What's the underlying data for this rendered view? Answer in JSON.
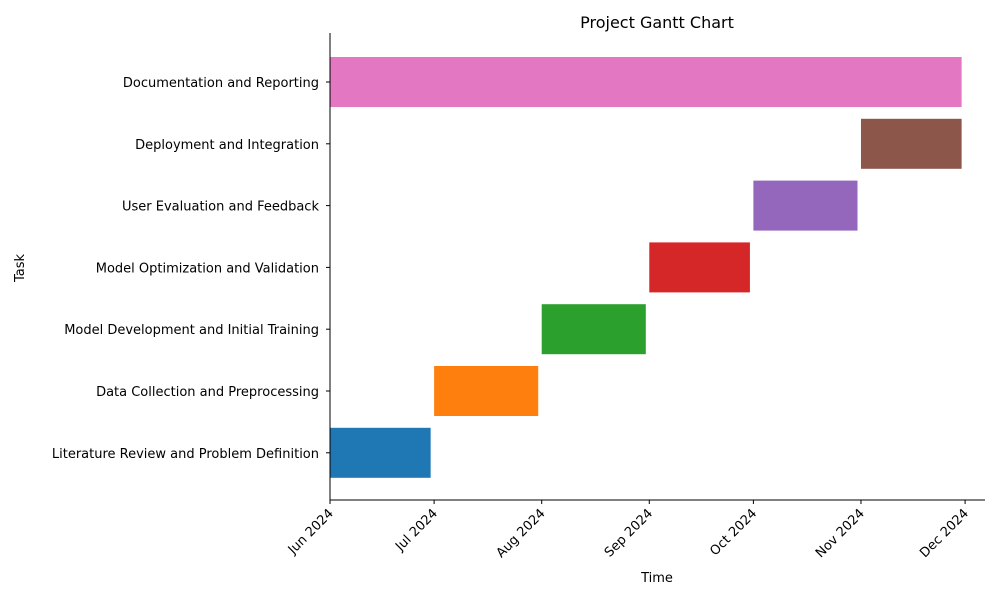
{
  "chart_data": {
    "type": "bar",
    "orientation": "horizontal",
    "title": "Project Gantt Chart",
    "xlabel": "Time",
    "ylabel": "Task",
    "xlim": [
      "2024-06-01",
      "2024-12-01"
    ],
    "x_ticks": [
      {
        "date": "2024-06-01",
        "label": "Jun 2024"
      },
      {
        "date": "2024-07-01",
        "label": "Jul 2024"
      },
      {
        "date": "2024-08-01",
        "label": "Aug 2024"
      },
      {
        "date": "2024-09-01",
        "label": "Sep 2024"
      },
      {
        "date": "2024-10-01",
        "label": "Oct 2024"
      },
      {
        "date": "2024-11-01",
        "label": "Nov 2024"
      },
      {
        "date": "2024-12-01",
        "label": "Dec 2024"
      }
    ],
    "grid": false,
    "tasks": [
      {
        "name": "Literature Review and Problem Definition",
        "start": "2024-06-01",
        "end": "2024-06-30",
        "color": "#1f77b4"
      },
      {
        "name": "Data Collection and Preprocessing",
        "start": "2024-07-01",
        "end": "2024-07-31",
        "color": "#ff7f0e"
      },
      {
        "name": "Model Development and Initial Training",
        "start": "2024-08-01",
        "end": "2024-08-31",
        "color": "#2ca02c"
      },
      {
        "name": "Model Optimization and Validation",
        "start": "2024-09-01",
        "end": "2024-09-30",
        "color": "#d62728"
      },
      {
        "name": "User Evaluation and Feedback",
        "start": "2024-10-01",
        "end": "2024-10-31",
        "color": "#9467bd"
      },
      {
        "name": "Deployment and Integration",
        "start": "2024-11-01",
        "end": "2024-11-30",
        "color": "#8c564b"
      },
      {
        "name": "Documentation and Reporting",
        "start": "2024-06-01",
        "end": "2024-11-30",
        "color": "#e377c2"
      }
    ]
  }
}
